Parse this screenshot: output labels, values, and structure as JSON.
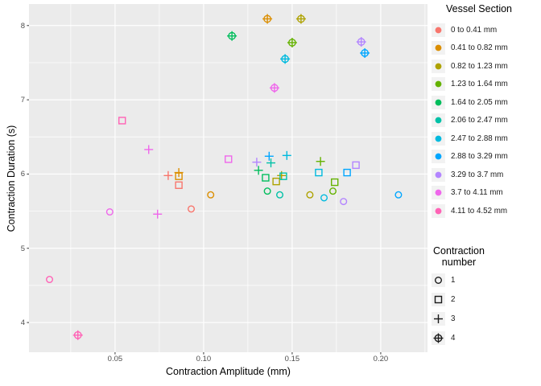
{
  "chart_data": {
    "type": "scatter",
    "title": "",
    "xlabel": "Contraction Amplitude (mm)",
    "ylabel": "Contraction Duration (s)",
    "xlim": [
      0.0014,
      0.2264
    ],
    "ylim": [
      3.6,
      8.29
    ],
    "x_major_ticks": [
      0.05,
      0.1,
      0.15,
      0.2
    ],
    "x_tick_labels": [
      "0.05",
      "0.10",
      "0.15",
      "0.20"
    ],
    "x_minor_ticks": [
      0.025,
      0.075,
      0.125,
      0.175,
      0.225
    ],
    "y_major_ticks": [
      4,
      5,
      6,
      7,
      8
    ],
    "y_tick_labels": [
      "4",
      "5",
      "6",
      "7",
      "8"
    ],
    "y_minor_ticks": [
      4.5,
      5.5,
      6.5,
      7.5
    ],
    "panel_bg": "#EBEBEB",
    "grid_color": "#FFFFFF",
    "tick_mark_color": "#333333",
    "grid": true,
    "legend_position": "right",
    "shape_legend_note": "shape codes: 1=open circle, 2=open square, 3=plus, 4=circle-plus",
    "series": [
      {
        "name": "0 to 0.41 mm",
        "color": "#F8766D",
        "points": [
          {
            "x": 0.08,
            "y": 5.98,
            "shape": 3
          },
          {
            "x": 0.086,
            "y": 5.85,
            "shape": 2
          },
          {
            "x": 0.093,
            "y": 5.53,
            "shape": 1
          }
        ]
      },
      {
        "name": "0.41 to 0.82 mm",
        "color": "#DB8E00",
        "points": [
          {
            "x": 0.136,
            "y": 8.09,
            "shape": 4
          },
          {
            "x": 0.086,
            "y": 6.02,
            "shape": 3
          },
          {
            "x": 0.086,
            "y": 5.97,
            "shape": 2
          },
          {
            "x": 0.104,
            "y": 5.72,
            "shape": 1
          }
        ]
      },
      {
        "name": "0.82 to 1.23 mm",
        "color": "#AEA200",
        "points": [
          {
            "x": 0.155,
            "y": 8.09,
            "shape": 4
          },
          {
            "x": 0.144,
            "y": 5.98,
            "shape": 3
          },
          {
            "x": 0.141,
            "y": 5.9,
            "shape": 2
          },
          {
            "x": 0.16,
            "y": 5.72,
            "shape": 1
          }
        ]
      },
      {
        "name": "1.23 to 1.64 mm",
        "color": "#64B200",
        "points": [
          {
            "x": 0.15,
            "y": 7.77,
            "shape": 4
          },
          {
            "x": 0.166,
            "y": 6.17,
            "shape": 3
          },
          {
            "x": 0.174,
            "y": 5.89,
            "shape": 2
          },
          {
            "x": 0.173,
            "y": 5.77,
            "shape": 1
          }
        ]
      },
      {
        "name": "1.64 to 2.05 mm",
        "color": "#00BD5C",
        "points": [
          {
            "x": 0.116,
            "y": 7.86,
            "shape": 4
          },
          {
            "x": 0.131,
            "y": 6.05,
            "shape": 3
          },
          {
            "x": 0.135,
            "y": 5.95,
            "shape": 2
          },
          {
            "x": 0.136,
            "y": 5.77,
            "shape": 1
          }
        ]
      },
      {
        "name": "2.06 to 2.47 mm",
        "color": "#00C1A7",
        "points": [
          {
            "x": 0.138,
            "y": 6.15,
            "shape": 3
          },
          {
            "x": 0.145,
            "y": 5.97,
            "shape": 2
          },
          {
            "x": 0.143,
            "y": 5.72,
            "shape": 1
          }
        ]
      },
      {
        "name": "2.47 to 2.88 mm",
        "color": "#00BADE",
        "points": [
          {
            "x": 0.146,
            "y": 7.55,
            "shape": 4
          },
          {
            "x": 0.147,
            "y": 6.25,
            "shape": 3
          },
          {
            "x": 0.165,
            "y": 6.02,
            "shape": 2
          },
          {
            "x": 0.168,
            "y": 5.68,
            "shape": 1
          }
        ]
      },
      {
        "name": "2.88 to 3.29 mm",
        "color": "#00A6FF",
        "points": [
          {
            "x": 0.191,
            "y": 7.63,
            "shape": 4
          },
          {
            "x": 0.137,
            "y": 6.24,
            "shape": 3
          },
          {
            "x": 0.181,
            "y": 6.02,
            "shape": 2
          },
          {
            "x": 0.21,
            "y": 5.72,
            "shape": 1
          }
        ]
      },
      {
        "name": "3.29 to 3.7 mm",
        "color": "#B385FF",
        "points": [
          {
            "x": 0.189,
            "y": 7.78,
            "shape": 4
          },
          {
            "x": 0.13,
            "y": 6.16,
            "shape": 3
          },
          {
            "x": 0.186,
            "y": 6.12,
            "shape": 2
          },
          {
            "x": 0.179,
            "y": 5.63,
            "shape": 1
          }
        ]
      },
      {
        "name": "3.7 to 4.11 mm",
        "color": "#EF67EB",
        "points": [
          {
            "x": 0.14,
            "y": 7.16,
            "shape": 4
          },
          {
            "x": 0.069,
            "y": 6.33,
            "shape": 3
          },
          {
            "x": 0.074,
            "y": 5.46,
            "shape": 3
          },
          {
            "x": 0.114,
            "y": 6.2,
            "shape": 2
          },
          {
            "x": 0.047,
            "y": 5.49,
            "shape": 1
          }
        ]
      },
      {
        "name": "4.11 to 4.52 mm",
        "color": "#FF63B6",
        "points": [
          {
            "x": 0.029,
            "y": 3.83,
            "shape": 4
          },
          {
            "x": 0.054,
            "y": 6.72,
            "shape": 2
          },
          {
            "x": 0.013,
            "y": 4.58,
            "shape": 1
          }
        ]
      }
    ]
  },
  "legend_vessel": {
    "title": "Vessel Section",
    "items": [
      {
        "label": "0 to 0.41 mm",
        "color": "#F8766D"
      },
      {
        "label": "0.41 to 0.82 mm",
        "color": "#DB8E00"
      },
      {
        "label": "0.82 to 1.23 mm",
        "color": "#AEA200"
      },
      {
        "label": "1.23 to 1.64 mm",
        "color": "#64B200"
      },
      {
        "label": "1.64 to 2.05 mm",
        "color": "#00BD5C"
      },
      {
        "label": "2.06 to 2.47 mm",
        "color": "#00C1A7"
      },
      {
        "label": "2.47 to 2.88 mm",
        "color": "#00BADE"
      },
      {
        "label": "2.88 to 3.29 mm",
        "color": "#00A6FF"
      },
      {
        "label": "3.29 to 3.7 mm",
        "color": "#B385FF"
      },
      {
        "label": "3.7 to 4.11 mm",
        "color": "#EF67EB"
      },
      {
        "label": "4.11 to 4.52 mm",
        "color": "#FF63B6"
      }
    ]
  },
  "legend_contraction": {
    "title": "Contraction number",
    "glyph_color": "#1A1A1A",
    "items": [
      {
        "label": "1",
        "shape": 1
      },
      {
        "label": "2",
        "shape": 2
      },
      {
        "label": "3",
        "shape": 3
      },
      {
        "label": "4",
        "shape": 4
      }
    ]
  }
}
